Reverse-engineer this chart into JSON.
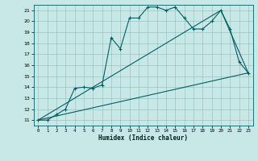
{
  "xlabel": "Humidex (Indice chaleur)",
  "bg_color": "#c8e8e8",
  "line_color": "#006060",
  "xlim": [
    -0.5,
    23.5
  ],
  "ylim": [
    10.5,
    21.5
  ],
  "yticks": [
    11,
    12,
    13,
    14,
    15,
    16,
    17,
    18,
    19,
    20,
    21
  ],
  "xticks": [
    0,
    1,
    2,
    3,
    4,
    5,
    6,
    7,
    8,
    9,
    10,
    11,
    12,
    13,
    14,
    15,
    16,
    17,
    18,
    19,
    20,
    21,
    22,
    23
  ],
  "curve1_x": [
    0,
    1,
    2,
    3,
    4,
    5,
    6,
    7,
    8,
    9,
    10,
    11,
    12,
    13,
    14,
    15,
    16,
    17,
    18,
    19,
    20,
    21,
    22,
    23
  ],
  "curve1_y": [
    11,
    11,
    11.5,
    12,
    13.9,
    14.0,
    13.9,
    14.2,
    18.5,
    17.5,
    20.3,
    20.3,
    21.3,
    21.3,
    21.0,
    21.3,
    20.3,
    19.3,
    19.3,
    20.0,
    21.0,
    19.3,
    16.3,
    15.3
  ],
  "curve2_x": [
    0,
    23
  ],
  "curve2_y": [
    11,
    15.3
  ],
  "curve3_x": [
    0,
    20,
    23
  ],
  "curve3_y": [
    11,
    21.0,
    15.3
  ],
  "marker": "+"
}
